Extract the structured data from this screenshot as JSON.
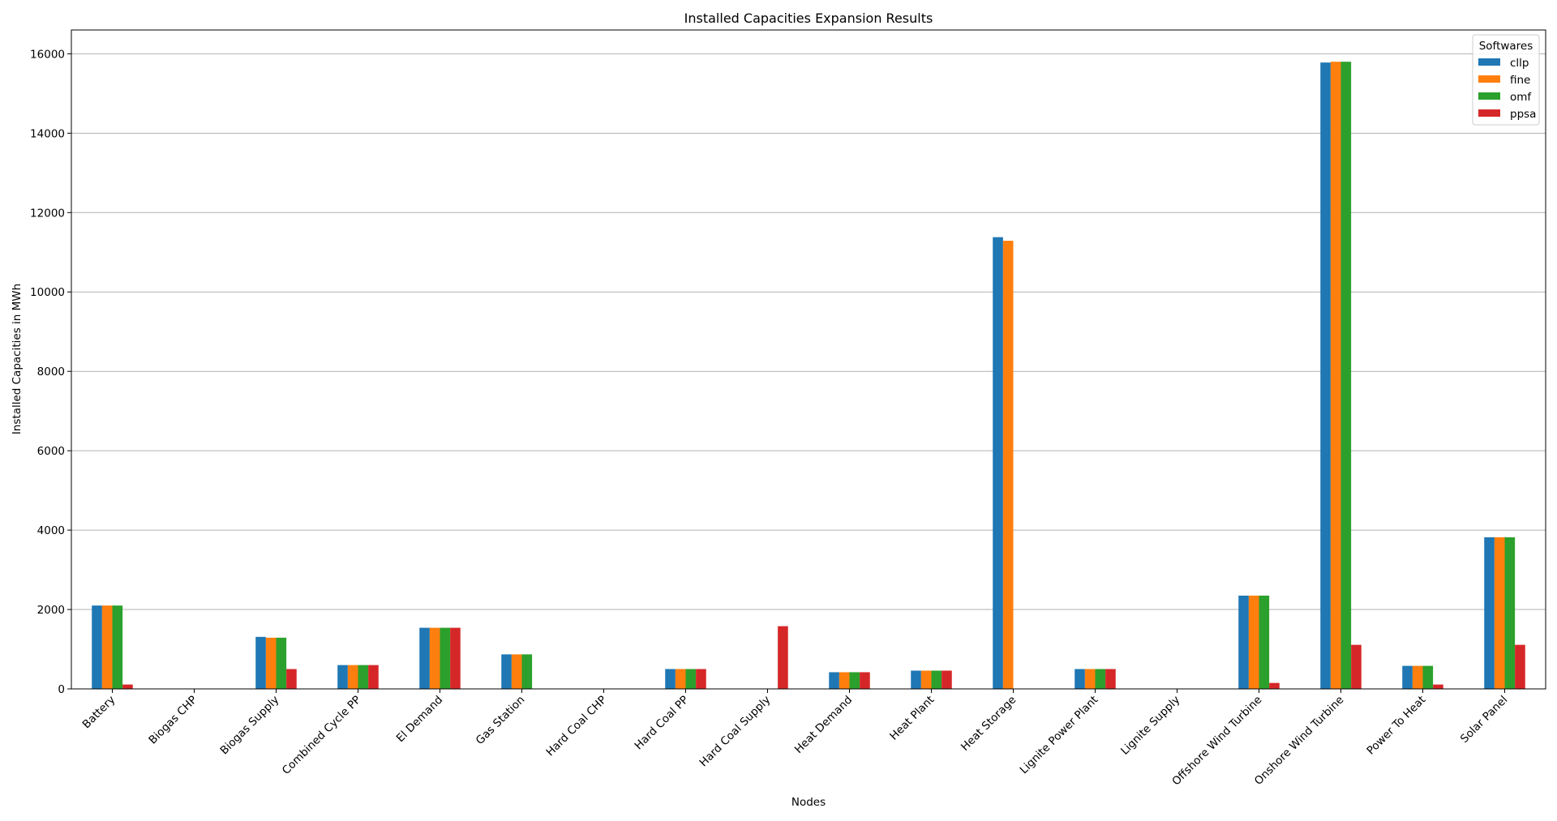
{
  "chart_data": {
    "type": "bar",
    "title": "Installed Capacities Expansion Results",
    "xlabel": "Nodes",
    "ylabel": "Installed Capacities in MWh",
    "ylim": [
      0,
      16600
    ],
    "yticks": [
      0,
      2000,
      4000,
      6000,
      8000,
      10000,
      12000,
      14000,
      16000
    ],
    "grid": "y",
    "legend_title": "Softwares",
    "legend_position": "top-right",
    "categories": [
      "Battery",
      "Biogas CHP",
      "Biogas Supply",
      "Combined Cycle PP",
      "El Demand",
      "Gas Station",
      "Hard Coal CHP",
      "Hard Coal PP",
      "Hard Coal Supply",
      "Heat Demand",
      "Heat Plant",
      "Heat Storage",
      "Lignite Power Plant",
      "Lignite Supply",
      "Offshore Wind Turbine",
      "Onshore Wind Turbine",
      "Power To Heat",
      "Solar Panel"
    ],
    "series": [
      {
        "name": "cllp",
        "color": "#1f77b4",
        "values": [
          2100,
          0,
          1310,
          600,
          1540,
          870,
          0,
          500,
          0,
          420,
          460,
          11380,
          500,
          0,
          2350,
          15780,
          580,
          3820
        ]
      },
      {
        "name": "fine",
        "color": "#ff7f0e",
        "values": [
          2100,
          0,
          1290,
          600,
          1540,
          870,
          0,
          500,
          0,
          420,
          460,
          11290,
          500,
          0,
          2350,
          15800,
          580,
          3820
        ]
      },
      {
        "name": "omf",
        "color": "#2ca02c",
        "values": [
          2100,
          0,
          1290,
          600,
          1540,
          870,
          0,
          500,
          0,
          420,
          460,
          0,
          500,
          0,
          2350,
          15800,
          580,
          3820
        ]
      },
      {
        "name": "ppsa",
        "color": "#d62728",
        "values": [
          110,
          0,
          500,
          600,
          1540,
          0,
          0,
          500,
          1580,
          420,
          460,
          0,
          500,
          0,
          150,
          1110,
          110,
          1110
        ]
      }
    ]
  }
}
